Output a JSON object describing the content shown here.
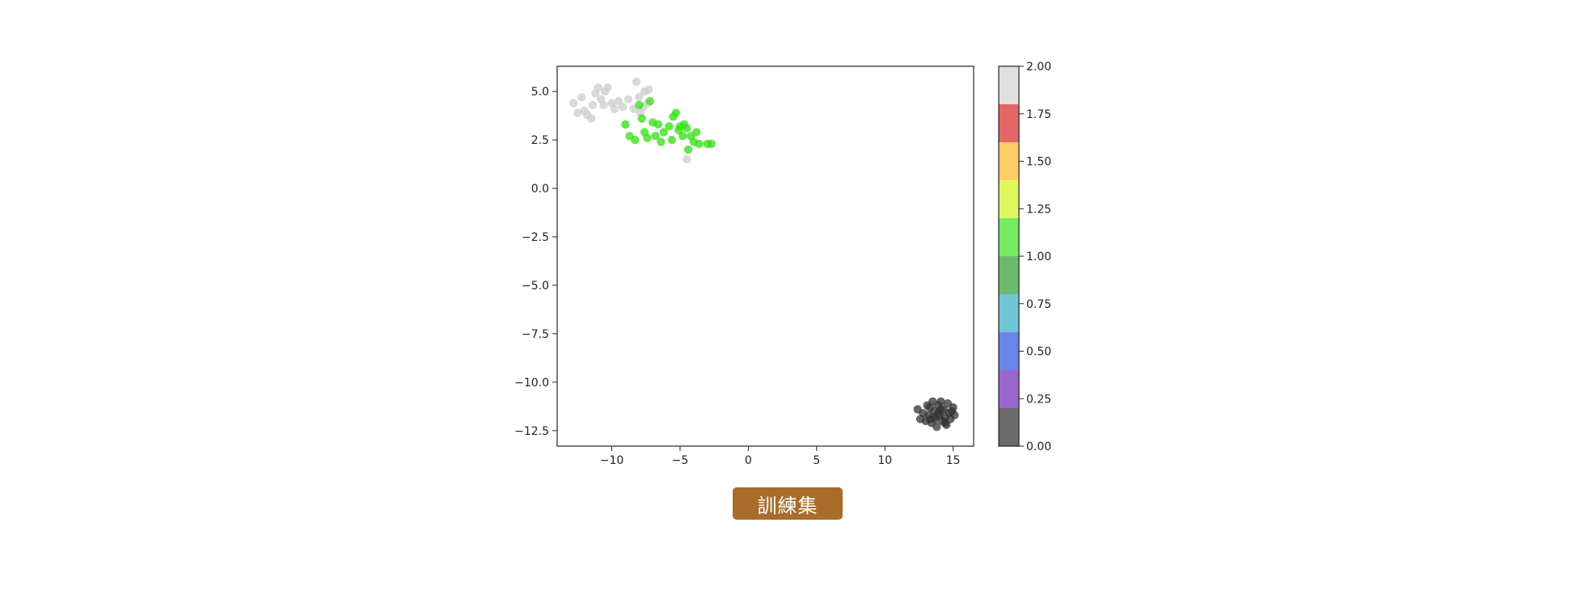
{
  "chart_data": {
    "type": "scatter",
    "title": "",
    "xlabel": "",
    "ylabel": "",
    "xlim": [
      -14,
      16.5
    ],
    "ylim": [
      -13.3,
      6.3
    ],
    "xticks": [
      -10,
      -5,
      0,
      5,
      10,
      15
    ],
    "xtick_labels": [
      "−10",
      "−5",
      "0",
      "5",
      "10",
      "15"
    ],
    "yticks": [
      5.0,
      2.5,
      0.0,
      -2.5,
      -5.0,
      -7.5,
      -10.0,
      -12.5
    ],
    "ytick_labels": [
      "5.0",
      "2.5",
      "0.0",
      "−2.5",
      "−5.0",
      "−7.5",
      "−10.0",
      "−12.5"
    ],
    "grid": false,
    "colorbar": {
      "range": [
        0.0,
        2.0
      ],
      "tick_values": [
        0.0,
        0.25,
        0.5,
        0.75,
        1.0,
        1.25,
        1.5,
        1.75,
        2.0
      ],
      "tick_labels": [
        "0.00",
        "0.25",
        "0.50",
        "0.75",
        "1.00",
        "1.25",
        "1.50",
        "1.75",
        "2.00"
      ],
      "colors": [
        "#6b6b6b",
        "#9b66cc",
        "#6b84ea",
        "#6fc6d6",
        "#6bba6b",
        "#77ea5f",
        "#dff75e",
        "#ffcc66",
        "#e66666",
        "#e0e0e0"
      ]
    },
    "series": [
      {
        "label_value": 2,
        "color": "#cccccc",
        "points": [
          [
            -12.8,
            4.4
          ],
          [
            -12.5,
            3.9
          ],
          [
            -12.2,
            4.7
          ],
          [
            -12.0,
            4.0
          ],
          [
            -11.8,
            3.8
          ],
          [
            -11.5,
            3.6
          ],
          [
            -11.4,
            4.3
          ],
          [
            -11.2,
            4.9
          ],
          [
            -11.0,
            5.2
          ],
          [
            -10.8,
            4.6
          ],
          [
            -10.6,
            4.3
          ],
          [
            -10.5,
            5.0
          ],
          [
            -10.3,
            5.2
          ],
          [
            -10.0,
            4.4
          ],
          [
            -9.8,
            4.1
          ],
          [
            -9.5,
            4.5
          ],
          [
            -9.2,
            4.2
          ],
          [
            -8.8,
            4.6
          ],
          [
            -8.4,
            4.1
          ],
          [
            -8.2,
            5.5
          ],
          [
            -8.0,
            4.7
          ],
          [
            -7.9,
            3.9
          ],
          [
            -7.7,
            4.2
          ],
          [
            -7.6,
            5.0
          ],
          [
            -7.4,
            4.4
          ],
          [
            -7.3,
            5.1
          ],
          [
            -4.5,
            1.5
          ]
        ]
      },
      {
        "label_value": 1,
        "color": "#33dd11",
        "points": [
          [
            -9.0,
            3.3
          ],
          [
            -8.7,
            2.7
          ],
          [
            -8.3,
            2.5
          ],
          [
            -8.0,
            4.3
          ],
          [
            -7.8,
            3.6
          ],
          [
            -7.6,
            2.9
          ],
          [
            -7.4,
            2.6
          ],
          [
            -7.2,
            4.5
          ],
          [
            -7.0,
            3.4
          ],
          [
            -6.8,
            2.7
          ],
          [
            -6.6,
            3.3
          ],
          [
            -6.4,
            2.4
          ],
          [
            -6.2,
            2.9
          ],
          [
            -5.8,
            3.2
          ],
          [
            -5.6,
            2.5
          ],
          [
            -5.5,
            3.7
          ],
          [
            -5.3,
            3.9
          ],
          [
            -5.1,
            3.0
          ],
          [
            -5.0,
            3.2
          ],
          [
            -4.8,
            2.7
          ],
          [
            -4.7,
            3.3
          ],
          [
            -4.5,
            3.1
          ],
          [
            -4.4,
            2.0
          ],
          [
            -4.2,
            2.7
          ],
          [
            -4.0,
            2.4
          ],
          [
            -3.8,
            2.9
          ],
          [
            -3.6,
            2.3
          ],
          [
            -3.0,
            2.3
          ],
          [
            -2.7,
            2.3
          ]
        ]
      },
      {
        "label_value": 0,
        "color": "#333333",
        "points": [
          [
            12.4,
            -11.4
          ],
          [
            12.6,
            -11.9
          ],
          [
            12.8,
            -11.6
          ],
          [
            13.0,
            -12.0
          ],
          [
            13.1,
            -11.2
          ],
          [
            13.2,
            -11.7
          ],
          [
            13.3,
            -11.3
          ],
          [
            13.4,
            -12.1
          ],
          [
            13.5,
            -11.0
          ],
          [
            13.6,
            -11.5
          ],
          [
            13.7,
            -11.9
          ],
          [
            13.8,
            -12.3
          ],
          [
            13.9,
            -11.2
          ],
          [
            14.0,
            -11.7
          ],
          [
            14.1,
            -11.0
          ],
          [
            14.2,
            -12.0
          ],
          [
            14.3,
            -11.4
          ],
          [
            14.4,
            -11.8
          ],
          [
            14.5,
            -12.2
          ],
          [
            14.6,
            -11.1
          ],
          [
            14.7,
            -11.6
          ],
          [
            14.8,
            -11.9
          ],
          [
            14.9,
            -11.5
          ],
          [
            15.0,
            -11.3
          ],
          [
            15.1,
            -11.7
          ],
          [
            13.6,
            -11.8
          ],
          [
            13.9,
            -11.6
          ],
          [
            14.1,
            -11.4
          ],
          [
            13.3,
            -11.9
          ],
          [
            14.4,
            -12.1
          ]
        ]
      }
    ]
  },
  "badge": {
    "label": "訓練集",
    "color": "#a96d2a"
  }
}
